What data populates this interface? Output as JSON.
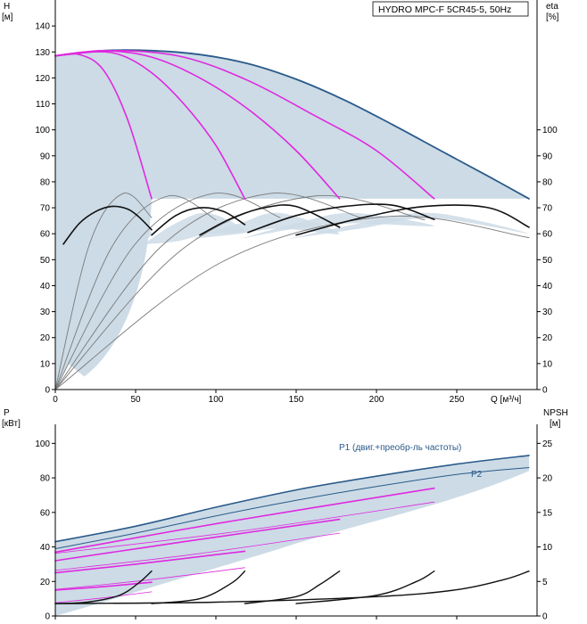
{
  "chart_data": {
    "type": "line",
    "title": "HYDRO MPC-F 5CR45-5, 50Hz",
    "x_axis": {
      "label": "Q [м³/ч]",
      "ticks": [
        0,
        50,
        100,
        150,
        200,
        250
      ],
      "range": [
        0,
        300
      ]
    },
    "head_chart": {
      "left_axis": {
        "label_top": "H",
        "label_unit": "[м]",
        "ticks": [
          0,
          10,
          20,
          30,
          40,
          50,
          60,
          70,
          80,
          90,
          100,
          110,
          120,
          130,
          140
        ],
        "range": [
          0,
          150
        ]
      },
      "right_axis": {
        "label_top": "eta",
        "label_unit": "[%]",
        "ticks": [
          0,
          10,
          20,
          30,
          40,
          50,
          60,
          70,
          80,
          90,
          100
        ],
        "range": [
          0,
          150
        ]
      },
      "max_head_curve": {
        "x": [
          0,
          30,
          60,
          90,
          120,
          150,
          180,
          210,
          240,
          270,
          295
        ],
        "y": [
          128.5,
          130.5,
          130.5,
          129,
          125.5,
          119.5,
          111.5,
          102,
          92,
          82,
          73.5
        ]
      },
      "pump_curves": [
        {
          "x": [
            0,
            15,
            30,
            45,
            60
          ],
          "y": [
            128.5,
            129,
            123,
            104,
            73.5
          ]
        },
        {
          "x": [
            0,
            20,
            40,
            60,
            80,
            100,
            118
          ],
          "y": [
            128.5,
            130,
            129,
            122,
            110,
            94,
            73.5
          ]
        },
        {
          "x": [
            0,
            30,
            60,
            90,
            120,
            150,
            177
          ],
          "y": [
            128.5,
            130.5,
            128,
            120,
            108,
            92,
            73.5
          ]
        },
        {
          "x": [
            0,
            40,
            80,
            120,
            160,
            200,
            236
          ],
          "y": [
            128.5,
            130.5,
            128,
            119,
            106,
            92,
            73.5
          ]
        }
      ],
      "efficiency_curves": [
        {
          "x": [
            5,
            15,
            25,
            35,
            45,
            52,
            60
          ],
          "y": [
            56,
            64,
            68.5,
            70.5,
            69.5,
            66.5,
            61.5
          ]
        },
        {
          "x": [
            60,
            75,
            90,
            105,
            118
          ],
          "y": [
            59.5,
            67,
            70,
            68.5,
            63.5
          ]
        },
        {
          "x": [
            90,
            110,
            130,
            150,
            177
          ],
          "y": [
            59.5,
            66,
            70,
            70.5,
            62.5
          ]
        },
        {
          "x": [
            120,
            150,
            180,
            210,
            236
          ],
          "y": [
            60.5,
            67,
            70.5,
            71,
            65.5
          ]
        },
        {
          "x": [
            150,
            190,
            230,
            270,
            295
          ],
          "y": [
            59.5,
            66,
            70.5,
            70,
            62.5
          ]
        }
      ]
    },
    "power_chart": {
      "left_axis": {
        "label_top": "P",
        "label_unit": "[кВт]",
        "ticks": [
          0,
          20,
          40,
          60,
          80,
          100
        ],
        "range": [
          0,
          110
        ]
      },
      "right_axis": {
        "label_top": "NPSH",
        "label_unit": "[м]",
        "ticks": [
          0,
          5,
          10,
          15,
          20,
          25
        ],
        "range": [
          0,
          27.5
        ]
      },
      "series_labels": [
        "P1 (двиг.+преобр-ль частоты)",
        "P2"
      ],
      "p1_curve": {
        "x": [
          0,
          50,
          100,
          150,
          200,
          250,
          295
        ],
        "y": [
          43,
          52,
          63,
          73,
          81,
          88,
          93
        ]
      },
      "p2_curve": {
        "x": [
          0,
          50,
          100,
          150,
          200,
          250,
          295
        ],
        "y": [
          39,
          48,
          58,
          67,
          75,
          82,
          86
        ]
      },
      "pump_power_curves": [
        {
          "x": [
            0,
            30,
            60
          ],
          "y": [
            15,
            17,
            19.5
          ]
        },
        {
          "x": [
            0,
            50,
            118
          ],
          "y": [
            25,
            30,
            37.5
          ]
        },
        {
          "x": [
            0,
            80,
            177
          ],
          "y": [
            32,
            43,
            56
          ]
        },
        {
          "x": [
            0,
            110,
            236
          ],
          "y": [
            37,
            55,
            74
          ]
        }
      ],
      "npsh_curves": [
        {
          "x": [
            0,
            20,
            40,
            52,
            60
          ],
          "y": [
            1.8,
            2.0,
            3.0,
            4.8,
            6.5
          ]
        },
        {
          "x": [
            60,
            90,
            110,
            118
          ],
          "y": [
            1.8,
            2.5,
            4.8,
            6.5
          ]
        },
        {
          "x": [
            118,
            150,
            165,
            177
          ],
          "y": [
            1.8,
            2.8,
            4.6,
            6.5
          ]
        },
        {
          "x": [
            150,
            200,
            225,
            236
          ],
          "y": [
            1.8,
            3.0,
            5.0,
            6.5
          ]
        },
        {
          "x": [
            0,
            100,
            200,
            250,
            280,
            295
          ],
          "y": [
            1.8,
            2.0,
            2.8,
            3.8,
            5.3,
            6.5
          ]
        }
      ]
    }
  }
}
